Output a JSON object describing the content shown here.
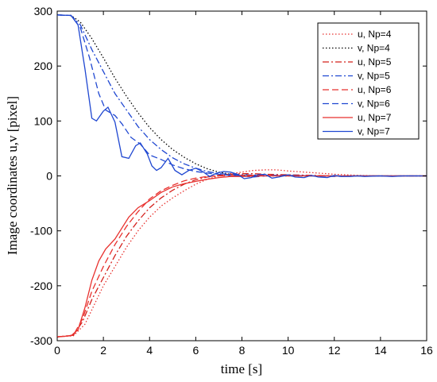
{
  "chart_data": {
    "type": "line",
    "xlabel": "time [s]",
    "ylabel": "Image coordinates u,v [pixel]",
    "xlim": [
      0,
      16
    ],
    "ylim": [
      -300,
      300
    ],
    "x_ticks": [
      "0",
      "2",
      "4",
      "6",
      "8",
      "10",
      "12",
      "14",
      "16"
    ],
    "y_ticks": [
      "300",
      "200",
      "100",
      "0",
      "-100",
      "-200",
      "-300"
    ],
    "grid": false,
    "legend_position": "top-right",
    "series": [
      {
        "name": "u, Np=4",
        "color": "#e8312e",
        "dash": "dotted",
        "points": [
          [
            0,
            -293
          ],
          [
            0.7,
            -291
          ],
          [
            1.2,
            -270
          ],
          [
            1.6,
            -235
          ],
          [
            2,
            -200
          ],
          [
            2.5,
            -165
          ],
          [
            3,
            -130
          ],
          [
            3.5,
            -100
          ],
          [
            4,
            -75
          ],
          [
            4.5,
            -55
          ],
          [
            5,
            -40
          ],
          [
            5.5,
            -27
          ],
          [
            6,
            -15
          ],
          [
            6.5,
            -6
          ],
          [
            7,
            0
          ],
          [
            7.5,
            4
          ],
          [
            8,
            7
          ],
          [
            8.5,
            10
          ],
          [
            9,
            11
          ],
          [
            9.5,
            11
          ],
          [
            10,
            9
          ],
          [
            11,
            6
          ],
          [
            12,
            3
          ],
          [
            13,
            1
          ],
          [
            14,
            0
          ],
          [
            16,
            0
          ]
        ]
      },
      {
        "name": "v, Np=4",
        "color": "#000000",
        "dash": "dotted",
        "points": [
          [
            0,
            293
          ],
          [
            0.6,
            292
          ],
          [
            1,
            280
          ],
          [
            1.5,
            250
          ],
          [
            2,
            215
          ],
          [
            2.5,
            178
          ],
          [
            3,
            145
          ],
          [
            3.5,
            115
          ],
          [
            4,
            88
          ],
          [
            4.5,
            66
          ],
          [
            5,
            48
          ],
          [
            5.5,
            34
          ],
          [
            6,
            22
          ],
          [
            6.5,
            13
          ],
          [
            7,
            7
          ],
          [
            7.5,
            3
          ],
          [
            8,
            1
          ],
          [
            9,
            0
          ],
          [
            16,
            0
          ]
        ]
      },
      {
        "name": "u, Np=5",
        "color": "#d4201b",
        "dash": "dashdot",
        "points": [
          [
            0,
            -293
          ],
          [
            0.7,
            -290
          ],
          [
            1.1,
            -265
          ],
          [
            1.5,
            -225
          ],
          [
            2,
            -185
          ],
          [
            2.5,
            -145
          ],
          [
            3,
            -110
          ],
          [
            3.5,
            -82
          ],
          [
            4,
            -58
          ],
          [
            4.5,
            -40
          ],
          [
            5,
            -26
          ],
          [
            5.5,
            -15
          ],
          [
            6,
            -7
          ],
          [
            6.5,
            -2
          ],
          [
            7,
            1
          ],
          [
            7.5,
            3
          ],
          [
            8,
            4
          ],
          [
            8.5,
            4
          ],
          [
            9,
            3
          ],
          [
            10,
            2
          ],
          [
            11,
            1
          ],
          [
            12,
            0
          ],
          [
            16,
            0
          ]
        ]
      },
      {
        "name": "v, Np=5",
        "color": "#1f47d1",
        "dash": "dashdot",
        "points": [
          [
            0,
            293
          ],
          [
            0.6,
            292
          ],
          [
            1,
            275
          ],
          [
            1.5,
            230
          ],
          [
            2,
            190
          ],
          [
            2.5,
            150
          ],
          [
            3,
            120
          ],
          [
            3.5,
            90
          ],
          [
            4,
            66
          ],
          [
            4.5,
            48
          ],
          [
            5,
            33
          ],
          [
            5.5,
            22
          ],
          [
            6,
            14
          ],
          [
            6.5,
            8
          ],
          [
            7,
            4
          ],
          [
            8,
            2
          ],
          [
            9,
            1
          ],
          [
            10,
            1
          ],
          [
            11,
            0
          ],
          [
            16,
            0
          ]
        ]
      },
      {
        "name": "u, Np=6",
        "color": "#e8312e",
        "dash": "dashed",
        "points": [
          [
            0,
            -293
          ],
          [
            0.7,
            -290
          ],
          [
            1.1,
            -260
          ],
          [
            1.5,
            -210
          ],
          [
            2,
            -165
          ],
          [
            2.5,
            -125
          ],
          [
            3,
            -92
          ],
          [
            3.5,
            -65
          ],
          [
            4,
            -42
          ],
          [
            4.5,
            -27
          ],
          [
            5,
            -17
          ],
          [
            5.5,
            -9
          ],
          [
            6,
            -4
          ],
          [
            6.5,
            -1
          ],
          [
            7,
            0
          ],
          [
            8,
            1
          ],
          [
            9,
            1
          ],
          [
            10,
            0
          ],
          [
            16,
            0
          ]
        ]
      },
      {
        "name": "v, Np=6",
        "color": "#1f47d1",
        "dash": "dashed",
        "points": [
          [
            0,
            293
          ],
          [
            0.6,
            292
          ],
          [
            1,
            270
          ],
          [
            1.4,
            215
          ],
          [
            1.8,
            150
          ],
          [
            2.1,
            120
          ],
          [
            2.5,
            110
          ],
          [
            2.8,
            95
          ],
          [
            3.2,
            70
          ],
          [
            3.6,
            58
          ],
          [
            4,
            38
          ],
          [
            4.5,
            30
          ],
          [
            5,
            20
          ],
          [
            5.5,
            13
          ],
          [
            6,
            8
          ],
          [
            6.5,
            5
          ],
          [
            7,
            3
          ],
          [
            7.5,
            1
          ],
          [
            8,
            0
          ],
          [
            8.5,
            -2
          ],
          [
            9,
            0
          ],
          [
            10,
            1
          ],
          [
            11,
            0
          ],
          [
            12,
            -1
          ],
          [
            13,
            0
          ],
          [
            14,
            0
          ],
          [
            16,
            0
          ]
        ]
      },
      {
        "name": "u, Np=7",
        "color": "#e8312e",
        "dash": "solid",
        "points": [
          [
            0,
            -293
          ],
          [
            0.6,
            -291
          ],
          [
            0.9,
            -280
          ],
          [
            1.2,
            -240
          ],
          [
            1.5,
            -190
          ],
          [
            1.8,
            -155
          ],
          [
            2.1,
            -133
          ],
          [
            2.5,
            -115
          ],
          [
            2.8,
            -95
          ],
          [
            3.1,
            -75
          ],
          [
            3.5,
            -58
          ],
          [
            4,
            -45
          ],
          [
            4.5,
            -30
          ],
          [
            5,
            -20
          ],
          [
            5.5,
            -14
          ],
          [
            6,
            -10
          ],
          [
            6.5,
            -6
          ],
          [
            7,
            -3
          ],
          [
            7.5,
            -1
          ],
          [
            8,
            -1
          ],
          [
            9,
            0
          ],
          [
            16,
            0
          ]
        ]
      },
      {
        "name": "v, Np=7",
        "color": "#1f47d1",
        "dash": "solid",
        "points": [
          [
            0,
            293
          ],
          [
            0.6,
            292
          ],
          [
            0.9,
            275
          ],
          [
            1.2,
            195
          ],
          [
            1.5,
            105
          ],
          [
            1.7,
            100
          ],
          [
            2,
            118
          ],
          [
            2.2,
            125
          ],
          [
            2.5,
            98
          ],
          [
            2.8,
            35
          ],
          [
            3.1,
            32
          ],
          [
            3.4,
            55
          ],
          [
            3.6,
            60
          ],
          [
            3.9,
            40
          ],
          [
            4.1,
            18
          ],
          [
            4.3,
            10
          ],
          [
            4.5,
            15
          ],
          [
            4.8,
            32
          ],
          [
            5.1,
            10
          ],
          [
            5.4,
            2
          ],
          [
            5.7,
            10
          ],
          [
            6.0,
            14
          ],
          [
            6.3,
            8
          ],
          [
            6.6,
            -1
          ],
          [
            6.9,
            5
          ],
          [
            7.2,
            8
          ],
          [
            7.5,
            7
          ],
          [
            7.8,
            3
          ],
          [
            8.1,
            -5
          ],
          [
            8.4,
            -3
          ],
          [
            8.7,
            2
          ],
          [
            9,
            3
          ],
          [
            9.3,
            -4
          ],
          [
            9.6,
            -2
          ],
          [
            10,
            2
          ],
          [
            10.3,
            -2
          ],
          [
            10.7,
            -3
          ],
          [
            11,
            1
          ],
          [
            11.3,
            -2
          ],
          [
            11.7,
            -3
          ],
          [
            12,
            1
          ],
          [
            12.3,
            -1
          ],
          [
            12.7,
            -1
          ],
          [
            13,
            0
          ],
          [
            13.3,
            -1
          ],
          [
            14,
            0
          ],
          [
            14.5,
            -1
          ],
          [
            15,
            0
          ],
          [
            16,
            0
          ]
        ]
      }
    ]
  }
}
